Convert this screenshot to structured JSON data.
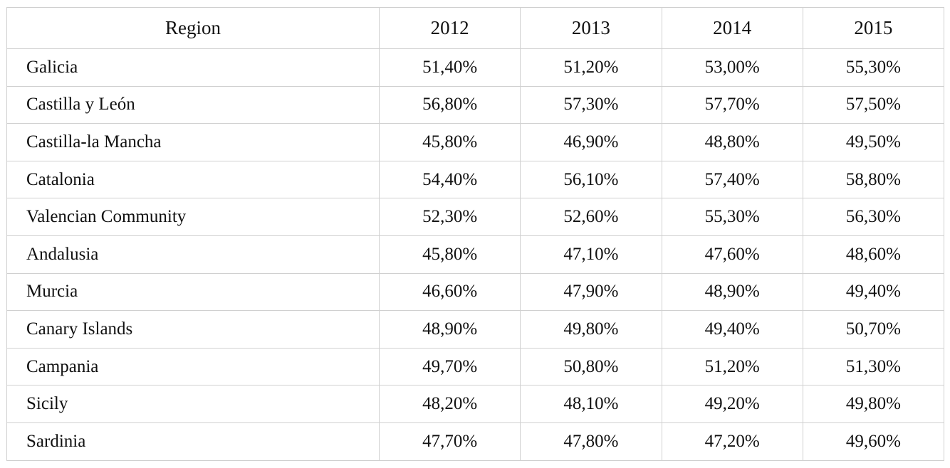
{
  "table": {
    "header": [
      "Region",
      "2012",
      "2013",
      "2014",
      "2015"
    ],
    "rows": [
      [
        "Galicia",
        "51,40%",
        "51,20%",
        "53,00%",
        "55,30%"
      ],
      [
        "Castilla y León",
        "56,80%",
        "57,30%",
        "57,70%",
        "57,50%"
      ],
      [
        "Castilla-la Mancha",
        "45,80%",
        "46,90%",
        "48,80%",
        "49,50%"
      ],
      [
        "Catalonia",
        "54,40%",
        "56,10%",
        "57,40%",
        "58,80%"
      ],
      [
        "Valencian Community",
        "52,30%",
        "52,60%",
        "55,30%",
        "56,30%"
      ],
      [
        "Andalusia",
        "45,80%",
        "47,10%",
        "47,60%",
        "48,60%"
      ],
      [
        "Murcia",
        "46,60%",
        "47,90%",
        "48,90%",
        "49,40%"
      ],
      [
        "Canary Islands",
        "48,90%",
        "49,80%",
        "49,40%",
        "50,70%"
      ],
      [
        "Campania",
        "49,70%",
        "50,80%",
        "51,20%",
        "51,30%"
      ],
      [
        "Sicily",
        "48,20%",
        "48,10%",
        "49,20%",
        "49,80%"
      ],
      [
        "Sardinia",
        "47,70%",
        "47,80%",
        "47,20%",
        "49,60%"
      ]
    ]
  }
}
